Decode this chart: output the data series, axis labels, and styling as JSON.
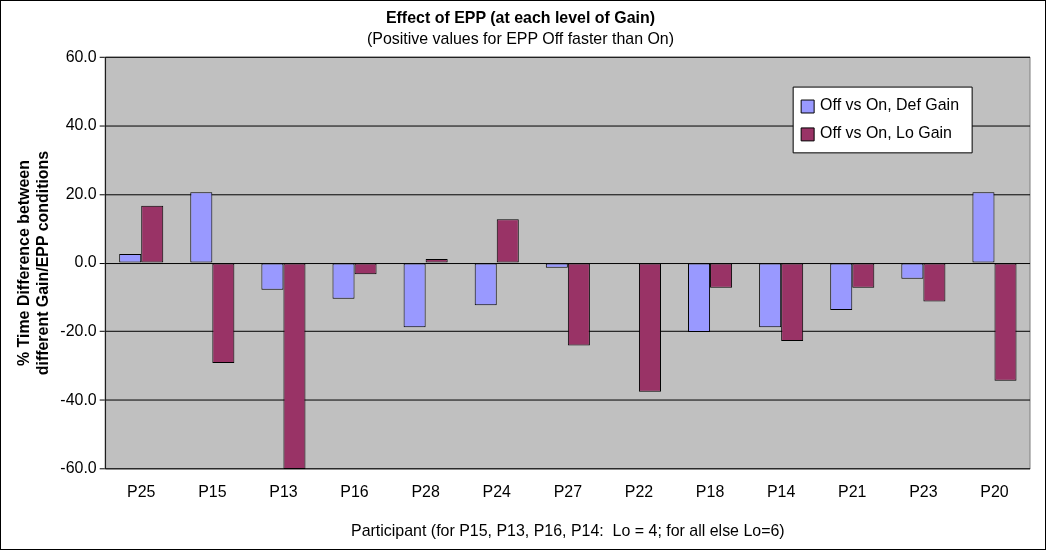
{
  "chart_data": {
    "type": "bar",
    "title": "Effect of EPP (at each level of Gain)",
    "subtitle": "(Positive values for EPP Off faster than On)",
    "xlabel": "Participant (for P15, P13, P16, P14:  Lo = 4; for all else Lo=6)",
    "ylabel": "% Time Difference between different Gain/EPP conditions",
    "categories": [
      "P25",
      "P15",
      "P13",
      "P16",
      "P28",
      "P24",
      "P27",
      "P22",
      "P18",
      "P14",
      "P21",
      "P23",
      "P20"
    ],
    "series": [
      {
        "name": "Off vs On, Def Gain",
        "color": "#9999ff",
        "values": [
          2.6,
          20.6,
          -7.8,
          -10.4,
          -18.7,
          -12.3,
          -1.4,
          0,
          -20.1,
          -18.7,
          -13.7,
          -4.6,
          20.6
        ]
      },
      {
        "name": "Off vs On, Lo Gain",
        "color": "#993366",
        "values": [
          16.7,
          -29.1,
          -60,
          -3.3,
          1.2,
          12.8,
          -24.0,
          -37.5,
          -7.2,
          -22.7,
          -7.2,
          -11.2,
          -34.3
        ]
      }
    ],
    "ylim": [
      -60,
      60
    ],
    "yticks": [
      {
        "value": -60,
        "label": "-60.0"
      },
      {
        "value": -40,
        "label": "-40.0"
      },
      {
        "value": -20,
        "label": "-20.0"
      },
      {
        "value": 0,
        "label": "0.0"
      },
      {
        "value": 20,
        "label": "20.0"
      },
      {
        "value": 40,
        "label": "40.0"
      },
      {
        "value": 60,
        "label": "60.0"
      }
    ],
    "grid": "y",
    "legend": "top right"
  }
}
